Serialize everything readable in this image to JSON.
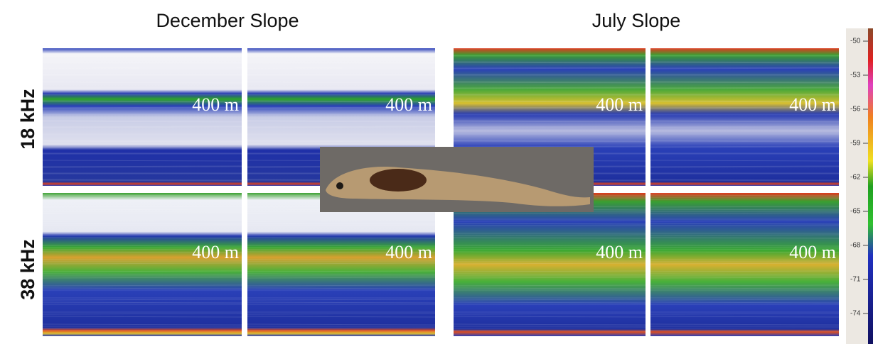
{
  "titles": [
    "December Slope",
    "July Slope"
  ],
  "rows": [
    "18 kHz",
    "38 kHz"
  ],
  "panels": [
    {
      "label": "400 m"
    },
    {
      "label": "400 m"
    },
    {
      "label": "400 m"
    },
    {
      "label": "400 m"
    },
    {
      "label": "400 m"
    },
    {
      "label": "400 m"
    },
    {
      "label": "400 m"
    },
    {
      "label": "400 m"
    }
  ],
  "colorbar": {
    "ticks": [
      -50,
      -53,
      -56,
      -59,
      -62,
      -65,
      -68,
      -71,
      -74
    ]
  }
}
